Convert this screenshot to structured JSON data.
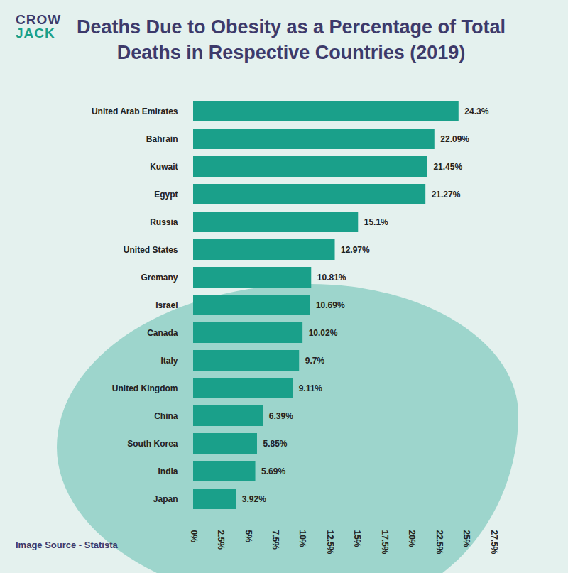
{
  "chart_data": {
    "type": "bar",
    "brand": [
      "CROW",
      "JACK"
    ],
    "title": "Deaths Due to Obesity as a Percentage of Total Deaths in Respective Countries (2019)",
    "source": "Image Source - Statista",
    "orientation": "horizontal",
    "categories": [
      "United Arab Emirates",
      "Bahrain",
      "Kuwait",
      "Egypt",
      "Russia",
      "United States",
      "Gremany",
      "Israel",
      "Canada",
      "Italy",
      "United Kingdom",
      "China",
      "South Korea",
      "India",
      "Japan"
    ],
    "values": [
      24.3,
      22.09,
      21.45,
      21.27,
      15.1,
      12.97,
      10.81,
      10.69,
      10.02,
      9.7,
      9.11,
      6.39,
      5.85,
      5.69,
      3.92
    ],
    "value_labels": [
      "24.3%",
      "22.09%",
      "21.45%",
      "21.27%",
      "15.1%",
      "12.97%",
      "10.81%",
      "10.69%",
      "10.02%",
      "9.7%",
      "9.11%",
      "6.39%",
      "5.85%",
      "5.69%",
      "3.92%"
    ],
    "color": "#1aa08a",
    "data_labels": true,
    "grid": false,
    "xlim": [
      0,
      27.5
    ],
    "xticks": [
      {
        "value": 0,
        "label": "0%"
      },
      {
        "value": 2.5,
        "label": "2.5%"
      },
      {
        "value": 5,
        "label": "5%"
      },
      {
        "value": 7.5,
        "label": "7.5%"
      },
      {
        "value": 10,
        "label": "10%"
      },
      {
        "value": 12.5,
        "label": "12.5%"
      },
      {
        "value": 15,
        "label": "15%"
      },
      {
        "value": 17.5,
        "label": "17.5%"
      },
      {
        "value": 20,
        "label": "20%"
      },
      {
        "value": 22.5,
        "label": "22.5%"
      },
      {
        "value": 25,
        "label": "25%"
      },
      {
        "value": 27.5,
        "label": "27.5%"
      }
    ]
  }
}
